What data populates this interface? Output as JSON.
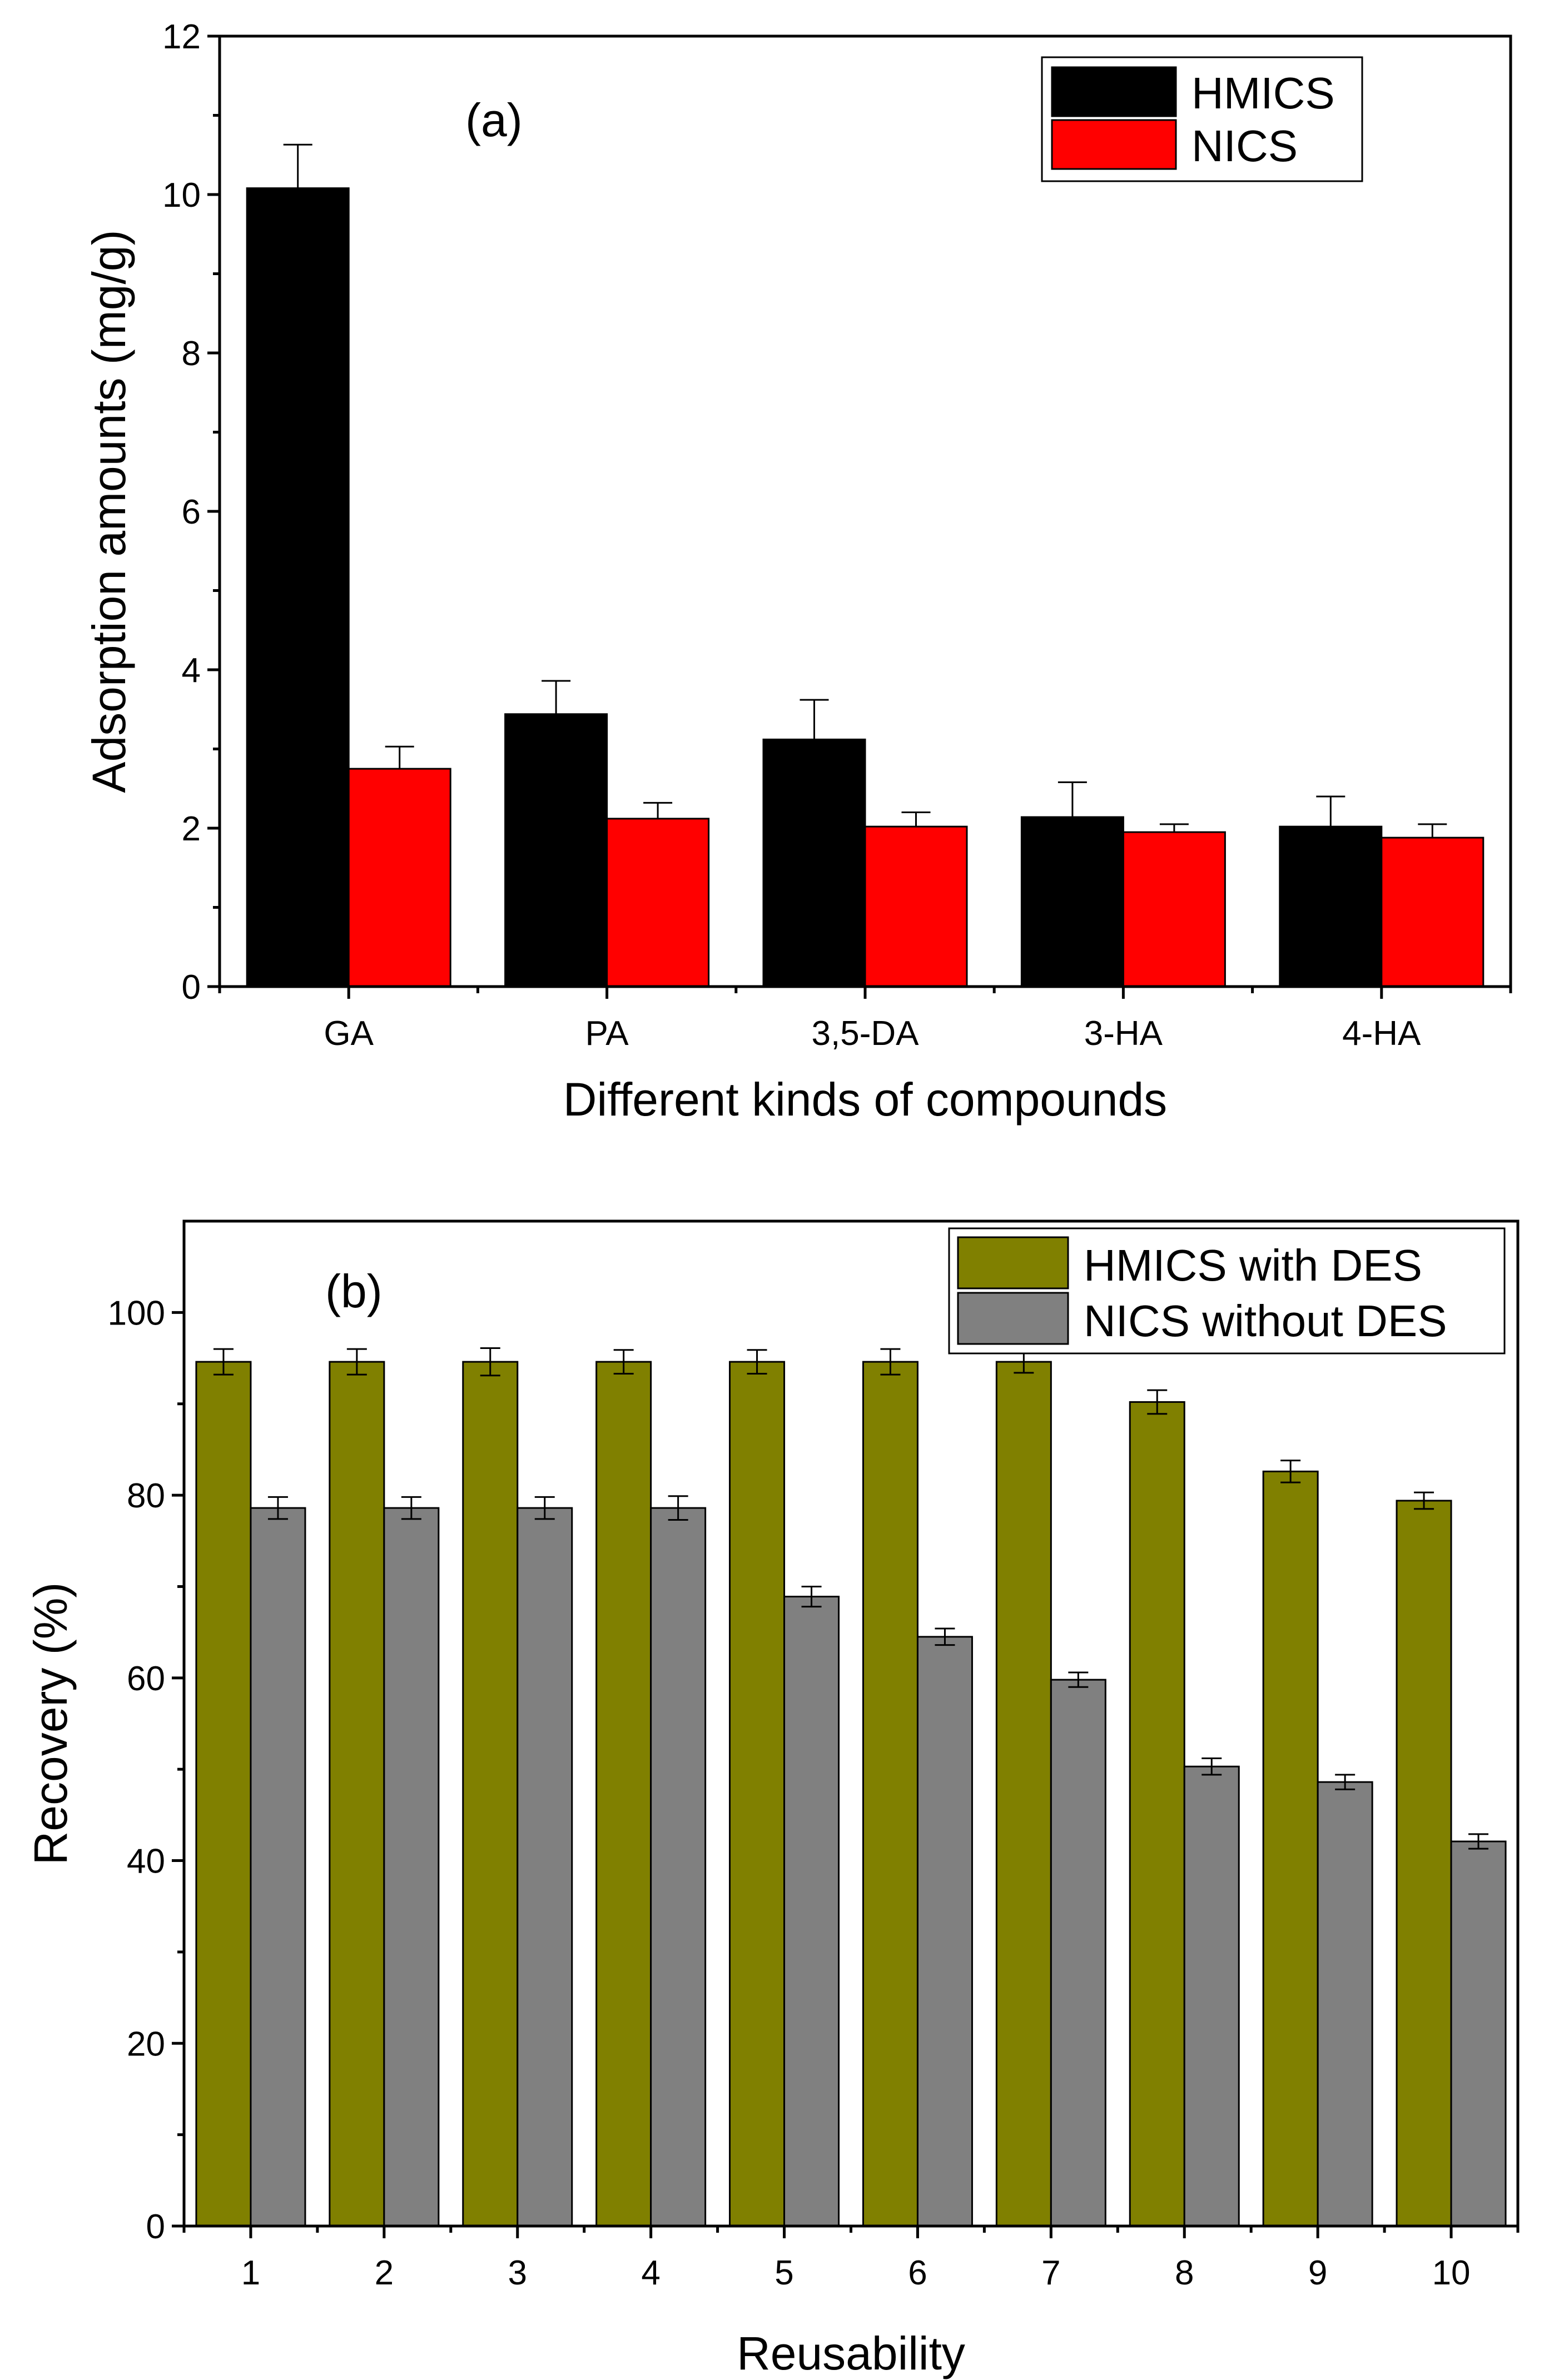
{
  "chart_data": [
    {
      "type": "bar",
      "panel_label": "(a)",
      "categories": [
        "GA",
        "PA",
        "3,5-DA",
        "3-HA",
        "4-HA"
      ],
      "xlabel": "Different kinds of compounds",
      "ylabel": "Adsorption amounts (mg/g)",
      "ylim": [
        0,
        12
      ],
      "yticks": [
        0,
        2,
        4,
        6,
        8,
        10,
        12
      ],
      "legend_position": "top-right",
      "grid": false,
      "series": [
        {
          "name": "HMICS",
          "color": "#000000",
          "values": [
            10.08,
            3.44,
            3.12,
            2.14,
            2.02
          ],
          "errors": [
            0.55,
            0.42,
            0.5,
            0.44,
            0.38
          ]
        },
        {
          "name": "NICS",
          "color": "#ff0000",
          "values": [
            2.75,
            2.12,
            2.02,
            1.95,
            1.88
          ],
          "errors": [
            0.28,
            0.2,
            0.18,
            0.1,
            0.17
          ]
        }
      ]
    },
    {
      "type": "bar",
      "panel_label": "(b)",
      "categories": [
        "1",
        "2",
        "3",
        "4",
        "5",
        "6",
        "7",
        "8",
        "9",
        "10"
      ],
      "xlabel": "Reusability",
      "ylabel": "Recovery (%)",
      "ylim": [
        0,
        110
      ],
      "yticks": [
        0,
        20,
        40,
        60,
        80,
        100
      ],
      "legend_position": "top-right",
      "grid": false,
      "series": [
        {
          "name": "HMICS with DES",
          "color": "#808000",
          "values": [
            94.6,
            94.6,
            94.6,
            94.6,
            94.6,
            94.6,
            94.6,
            90.2,
            82.6,
            79.4
          ],
          "errors": [
            1.4,
            1.4,
            1.5,
            1.3,
            1.3,
            1.4,
            1.2,
            1.3,
            1.2,
            0.9
          ]
        },
        {
          "name": "NICS without DES",
          "color": "#808080",
          "values": [
            78.6,
            78.6,
            78.6,
            78.6,
            68.9,
            64.5,
            59.8,
            50.3,
            48.6,
            42.1
          ],
          "errors": [
            1.2,
            1.2,
            1.2,
            1.3,
            1.1,
            0.9,
            0.8,
            0.9,
            0.8,
            0.8
          ]
        }
      ]
    }
  ]
}
